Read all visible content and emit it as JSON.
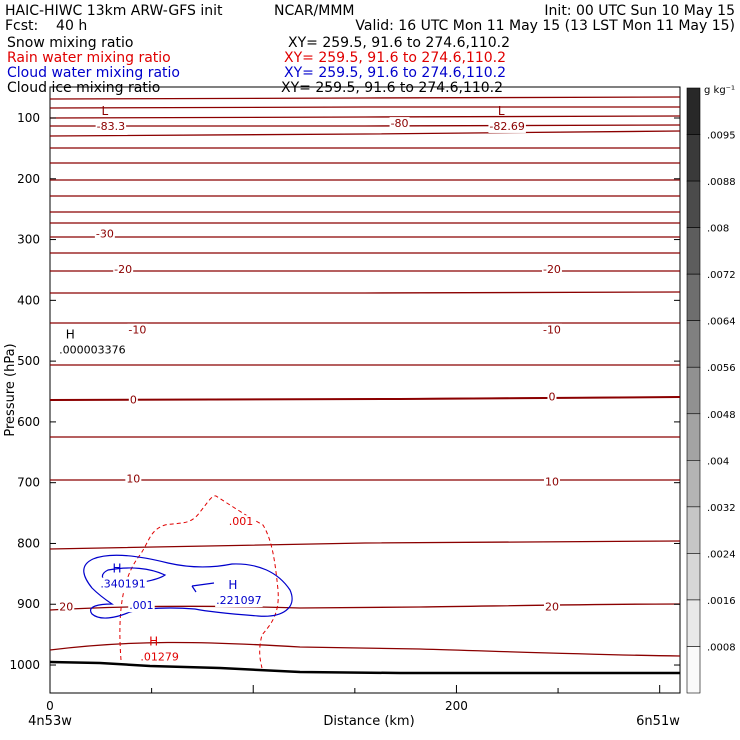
{
  "header": {
    "line1_left": "HAIC-HIWC 13km ARW-GFS init",
    "line1_mid": "NCAR/MMM",
    "line1_right": "Init: 00 UTC Sun 10 May 15",
    "line2_left": "Fcst:    40 h",
    "line2_right": "Valid: 16 UTC Mon 11 May 15 (13 LST Mon 11 May 15)",
    "fields": [
      {
        "name": "Snow mixing ratio",
        "xy": "XY= 259.5, 91.6 to 274.6,110.2",
        "color": "#000000"
      },
      {
        "name": "Rain water mixing ratio",
        "xy": "XY= 259.5, 91.6 to 274.6,110.2",
        "color": "#e00000"
      },
      {
        "name": "Cloud water mixing ratio",
        "xy": "XY= 259.5, 91.6 to 274.6,110.2",
        "color": "#0000cc"
      },
      {
        "name": "Cloud ice mixing ratio",
        "xy": "XY= 259.5, 91.6 to 274.6,110.2",
        "color": "#000000"
      }
    ]
  },
  "chart_data": {
    "type": "contour cross-section",
    "xlabel": "Distance (km)",
    "ylabel": "Pressure (hPa)",
    "x_range": [
      0,
      310
    ],
    "y_range": [
      1050,
      50
    ],
    "x_ticks": [
      0,
      200
    ],
    "y_ticks": [
      100,
      200,
      300,
      400,
      500,
      600,
      700,
      800,
      900,
      1000
    ],
    "x_endpoint_labels": [
      "4n53w",
      "6n51w"
    ],
    "temperature_contour_color": "#8b0000",
    "temperature_labels": [
      {
        "text": "-80",
        "x": 172,
        "p": 110
      },
      {
        "text": "-30",
        "x": 27,
        "p": 292
      },
      {
        "text": "-20",
        "x": 36,
        "p": 350
      },
      {
        "text": "-20",
        "x": 247,
        "p": 350
      },
      {
        "text": "-10",
        "x": 43,
        "p": 450
      },
      {
        "text": "-10",
        "x": 247,
        "p": 450
      },
      {
        "text": "0",
        "x": 41,
        "p": 565
      },
      {
        "text": "0",
        "x": 247,
        "p": 560
      },
      {
        "text": "10",
        "x": 41,
        "p": 695
      },
      {
        "text": "10",
        "x": 247,
        "p": 700
      },
      {
        "text": "20",
        "x": 8,
        "p": 905
      },
      {
        "text": "20",
        "x": 247,
        "p": 905
      }
    ],
    "extrema": [
      {
        "kind": "L",
        "value": "-83.3",
        "x": 27,
        "p": 95,
        "color": "#8b0000"
      },
      {
        "kind": "L",
        "value": "-82.69",
        "x": 222,
        "p": 95,
        "color": "#8b0000"
      },
      {
        "kind": "H",
        "value": ".000003376",
        "x": 10,
        "p": 463,
        "color": "#000000"
      },
      {
        "kind": "H",
        "value": ".340191",
        "x": 33,
        "p": 848,
        "color": "#0000cc"
      },
      {
        "kind": "H",
        "value": ".221097",
        "x": 90,
        "p": 875,
        "color": "#0000cc"
      },
      {
        "kind": "H",
        "value": ".01279",
        "x": 51,
        "p": 968,
        "color": "#e00000"
      }
    ],
    "contour_labels": [
      {
        "text": ".001",
        "x": 94,
        "p": 765,
        "color": "#e00000"
      },
      {
        "text": ".001",
        "x": 45,
        "p": 903,
        "color": "#0000cc"
      }
    ],
    "colorbar": {
      "unit": "g kg⁻¹",
      "labels": [
        ".0095",
        ".0088",
        ".008",
        ".0072",
        ".0064",
        ".0056",
        ".0048",
        ".004",
        ".0032",
        ".0024",
        ".0016",
        ".0008"
      ]
    }
  }
}
